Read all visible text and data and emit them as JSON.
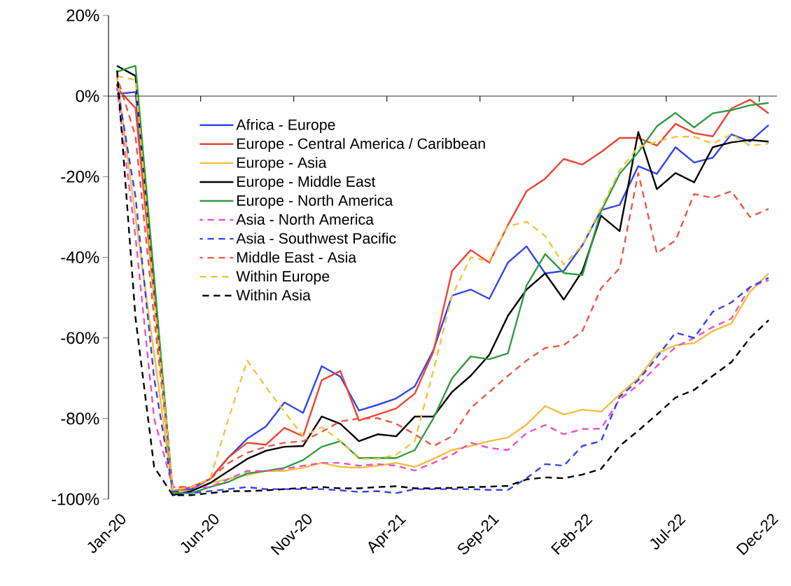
{
  "chart_data": {
    "type": "line",
    "categories": [
      "Jan-20",
      null,
      null,
      null,
      null,
      "Jun-20",
      null,
      null,
      null,
      null,
      "Nov-20",
      null,
      null,
      null,
      null,
      "Apr-21",
      null,
      null,
      null,
      null,
      "Sep-21",
      null,
      null,
      null,
      null,
      "Feb-22",
      null,
      null,
      null,
      null,
      "Jul-22",
      null,
      null,
      null,
      null,
      "Dec-22"
    ],
    "ylim": [
      -100,
      20
    ],
    "yticks": [
      {
        "value": -100,
        "label": "-100%"
      },
      {
        "value": -80,
        "label": "-80%"
      },
      {
        "value": -60,
        "label": "-60%"
      },
      {
        "value": -40,
        "label": "-40%"
      },
      {
        "value": -20,
        "label": "-20%"
      },
      {
        "value": 0,
        "label": "0%"
      },
      {
        "value": 20,
        "label": "20%"
      }
    ],
    "legend": "top left",
    "series": [
      {
        "name": "Africa - Europe",
        "color": "#3344ee",
        "line_style": "solid",
        "values": [
          0.5,
          1,
          -48,
          -98,
          -97.5,
          -95,
          -89.6,
          -85,
          -82,
          -76,
          -78.6,
          -67,
          -69.6,
          -78,
          -76.6,
          -75,
          -72,
          -63,
          -49.5,
          -48,
          -50.3,
          -41.3,
          -37.3,
          -44,
          -43.4,
          -37,
          -28.3,
          -27,
          -17.4,
          -19.3,
          -12.7,
          -16.5,
          -15.3,
          -9.5,
          -11.3,
          -7.2
        ]
      },
      {
        "name": "Europe - Central America / Caribbean",
        "color": "#ee4433",
        "line_style": "solid",
        "values": [
          2,
          -3,
          -50,
          -98,
          -97,
          -95,
          -89.6,
          -86,
          -86.5,
          -82.3,
          -84.4,
          -70.5,
          -68.2,
          -80.5,
          -79,
          -77.5,
          -73.8,
          -63.4,
          -43.4,
          -38.2,
          -41.3,
          -32,
          -23.6,
          -20.5,
          -15.6,
          -17,
          -13.9,
          -10.4,
          -10.4,
          -12.3,
          -6.9,
          -9.2,
          -10,
          -3.1,
          -0.9,
          -4.3
        ]
      },
      {
        "name": "Europe - Asia",
        "color": "#f2be3c",
        "line_style": "solid",
        "values": [
          5,
          -30,
          -64,
          -98,
          -98,
          -96,
          -95,
          -94,
          -93,
          -93,
          -92.2,
          -91,
          -92,
          -92.2,
          -91.7,
          -91,
          -92,
          -90,
          -87.8,
          -86.8,
          -85.6,
          -84.7,
          -81.5,
          -76.9,
          -79,
          -77.8,
          -78.3,
          -74,
          -70,
          -63.9,
          -61.8,
          -61.3,
          -58.3,
          -56.4,
          -48.6,
          -44
        ]
      },
      {
        "name": "Europe - Middle East",
        "color": "#000000",
        "line_style": "solid",
        "values": [
          7.5,
          5,
          -46,
          -99,
          -98,
          -96,
          -93,
          -90,
          -88,
          -87,
          -86.8,
          -79.5,
          -81.3,
          -85.6,
          -83.9,
          -84.4,
          -79.5,
          -79.5,
          -73.4,
          -69.4,
          -64.2,
          -54.5,
          -48,
          -44,
          -50.5,
          -43.4,
          -29.7,
          -33.5,
          -8.9,
          -23.1,
          -19.1,
          -21.4,
          -12.7,
          -11.5,
          -10.9,
          -11.3
        ]
      },
      {
        "name": "Europe - North America",
        "color": "#2e9b3e",
        "line_style": "solid",
        "values": [
          6,
          7.5,
          -45,
          -98.5,
          -98.5,
          -97,
          -95.7,
          -93.6,
          -93,
          -92.2,
          -90.3,
          -87,
          -85.6,
          -89.8,
          -89.8,
          -89.8,
          -87.8,
          -79.9,
          -70,
          -64.6,
          -65.3,
          -63.8,
          -47,
          -39.2,
          -43.9,
          -44.4,
          -28.6,
          -19.3,
          -13.9,
          -7.5,
          -4.2,
          -7.8,
          -4.3,
          -3.5,
          -2.3,
          -1.7
        ]
      },
      {
        "name": "Asia - North America",
        "color": "#ee4fc5",
        "line_style": "dashed",
        "values": [
          2,
          -35,
          -80,
          -97,
          -97,
          -97,
          -95,
          -93,
          -93,
          -92.5,
          -91.7,
          -91,
          -91,
          -91.7,
          -91.3,
          -91.7,
          -92.9,
          -91,
          -89,
          -86,
          -87.3,
          -87.8,
          -83.6,
          -81.6,
          -83.9,
          -82.6,
          -82.5,
          -75.2,
          -71.7,
          -67,
          -62.2,
          -60,
          -57.3,
          -55.2,
          -47.4,
          -45.7
        ]
      },
      {
        "name": "Asia - Southwest Pacific",
        "color": "#3344ee",
        "line_style": "dashed",
        "values": [
          3,
          -25,
          -70,
          -98,
          -98.5,
          -98,
          -97.5,
          -97,
          -97.5,
          -97.5,
          -97.5,
          -97.5,
          -97.8,
          -98.2,
          -98,
          -98.5,
          -97.5,
          -97.5,
          -97.5,
          -97.5,
          -97.7,
          -97.7,
          -94.8,
          -91.3,
          -91.7,
          -86.8,
          -85.6,
          -74.6,
          -70.5,
          -64.8,
          -58.7,
          -60,
          -53.5,
          -51.2,
          -47.4,
          -45.1
        ]
      },
      {
        "name": "Middle East - Asia",
        "color": "#ee5548",
        "line_style": "dashed",
        "values": [
          5,
          -10,
          -55,
          -97,
          -97,
          -95,
          -91,
          -88.5,
          -87,
          -86,
          -85.6,
          -83.3,
          -80.7,
          -80,
          -79.9,
          -81.3,
          -83.9,
          -86.8,
          -84.4,
          -77.4,
          -73.4,
          -69.4,
          -65.6,
          -62.5,
          -61.8,
          -58.3,
          -47.7,
          -42.7,
          -19.1,
          -39,
          -35.8,
          -24.3,
          -25.3,
          -23.6,
          -30,
          -28
        ]
      },
      {
        "name": "Within Europe",
        "color": "#f2c440",
        "line_style": "dashed",
        "values": [
          5,
          4,
          -50,
          -97.7,
          -97,
          -95,
          -80,
          -65.6,
          -72.2,
          -78.3,
          -84.4,
          -82.1,
          -85.6,
          -90,
          -90,
          -89,
          -85.6,
          -68,
          -49.5,
          -40,
          -41,
          -32.3,
          -31.2,
          -34.7,
          -41.8,
          -37,
          -27.8,
          -18.4,
          -12.7,
          -11.3,
          -10.1,
          -10.1,
          -11.8,
          -9.5,
          -12.3,
          -11.8
        ]
      },
      {
        "name": "Within Asia",
        "color": "#000000",
        "line_style": "dashed",
        "values": [
          7,
          -55,
          -92,
          -99,
          -99,
          -98.5,
          -98,
          -98,
          -97.8,
          -97.5,
          -97.2,
          -97,
          -97.3,
          -97.3,
          -97,
          -96.8,
          -97.3,
          -97.3,
          -97.2,
          -97,
          -96.9,
          -96.7,
          -95.1,
          -94.6,
          -94.8,
          -93.9,
          -92.5,
          -86.8,
          -83,
          -79,
          -74.8,
          -72.9,
          -69.4,
          -66,
          -60,
          -55.6
        ]
      }
    ]
  }
}
